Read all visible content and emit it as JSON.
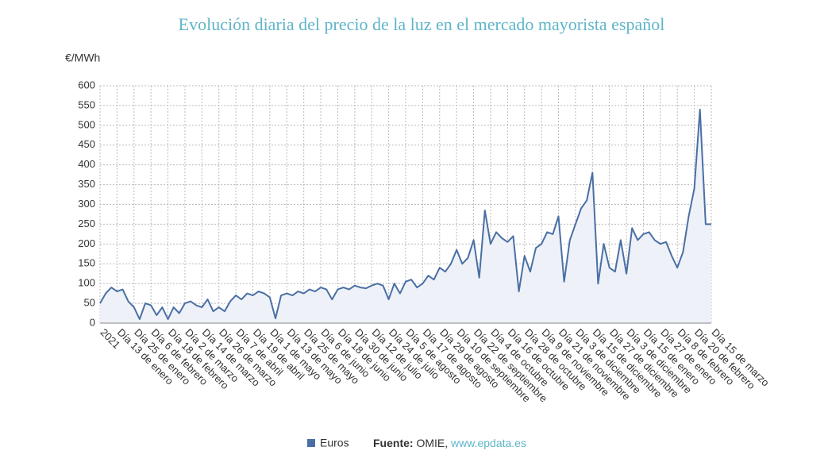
{
  "chart_data": {
    "type": "line",
    "title": "Evolución diaria del precio de la luz en el mercado mayorista español",
    "y_label": "€/MWh",
    "categories": [
      "2021",
      null,
      null,
      "Día 13 de enero",
      null,
      null,
      "Día 25 de enero",
      null,
      null,
      "Día 6 de febrero",
      null,
      null,
      "Día 18 de febrero",
      null,
      null,
      "Día 2 de marzo",
      null,
      null,
      "Día 14 de marzo",
      null,
      null,
      "Día 26 de marzo",
      null,
      null,
      "Día 7 de abril",
      null,
      null,
      "Día 19 de abril",
      null,
      null,
      "Día 1 de mayo",
      null,
      null,
      "Día 13 de mayo",
      null,
      null,
      "Día 25 de mayo",
      null,
      null,
      "Día 6 de junio",
      null,
      null,
      "Día 18 de junio",
      null,
      null,
      "Día 30 de junio",
      null,
      null,
      "Día 12 de julio",
      null,
      null,
      "Día 24 de julio",
      null,
      null,
      "Día 5 de agosto",
      null,
      null,
      "Día 17 de agosto",
      null,
      null,
      "Día 29 de agosto",
      null,
      null,
      "Día 10 de septiembre",
      null,
      null,
      "Día 22 de septiembre",
      null,
      null,
      "Día 4 de octubre",
      null,
      null,
      "Día 16 de octubre",
      null,
      null,
      "Día 28 de octubre",
      null,
      null,
      "Día 9 de noviembre",
      null,
      null,
      "Día 21 de noviembre",
      null,
      null,
      "Día 3 de diciembre",
      null,
      null,
      "Día 15 de diciembre",
      null,
      null,
      "Día 27 de diciembre",
      null,
      null,
      "Día 3 de diciembre",
      null,
      null,
      "Día 15 de enero",
      null,
      null,
      "Día 27 de enero",
      null,
      null,
      "Día 8 de febrero",
      null,
      null,
      "Día 20 de febrero",
      null,
      null,
      "Día 15 de marzo"
    ],
    "series": [
      {
        "name": "Euros",
        "color": "#4a6fa5",
        "fill": "#eef1f7",
        "values": [
          50,
          75,
          90,
          80,
          85,
          55,
          40,
          10,
          50,
          45,
          20,
          40,
          10,
          40,
          25,
          50,
          55,
          45,
          40,
          60,
          30,
          40,
          30,
          55,
          70,
          60,
          75,
          70,
          80,
          75,
          65,
          12,
          70,
          75,
          70,
          80,
          75,
          85,
          80,
          90,
          85,
          60,
          85,
          90,
          85,
          95,
          90,
          88,
          95,
          100,
          95,
          60,
          100,
          75,
          105,
          110,
          90,
          100,
          120,
          110,
          140,
          130,
          150,
          185,
          150,
          165,
          210,
          115,
          285,
          200,
          230,
          215,
          205,
          220,
          80,
          170,
          130,
          190,
          200,
          230,
          225,
          270,
          105,
          210,
          250,
          290,
          310,
          380,
          100,
          200,
          140,
          130,
          210,
          125,
          240,
          210,
          225,
          230,
          210,
          200,
          205,
          170,
          140,
          180,
          270,
          340,
          540,
          250,
          250
        ]
      }
    ],
    "ylim": [
      0,
      600
    ],
    "yticks": [
      0,
      50,
      100,
      150,
      200,
      250,
      300,
      350,
      400,
      450,
      500,
      550,
      600
    ],
    "grid": true,
    "source": {
      "label": "Fuente:",
      "text": "OMIE,",
      "link": "www.epdata.es"
    }
  }
}
